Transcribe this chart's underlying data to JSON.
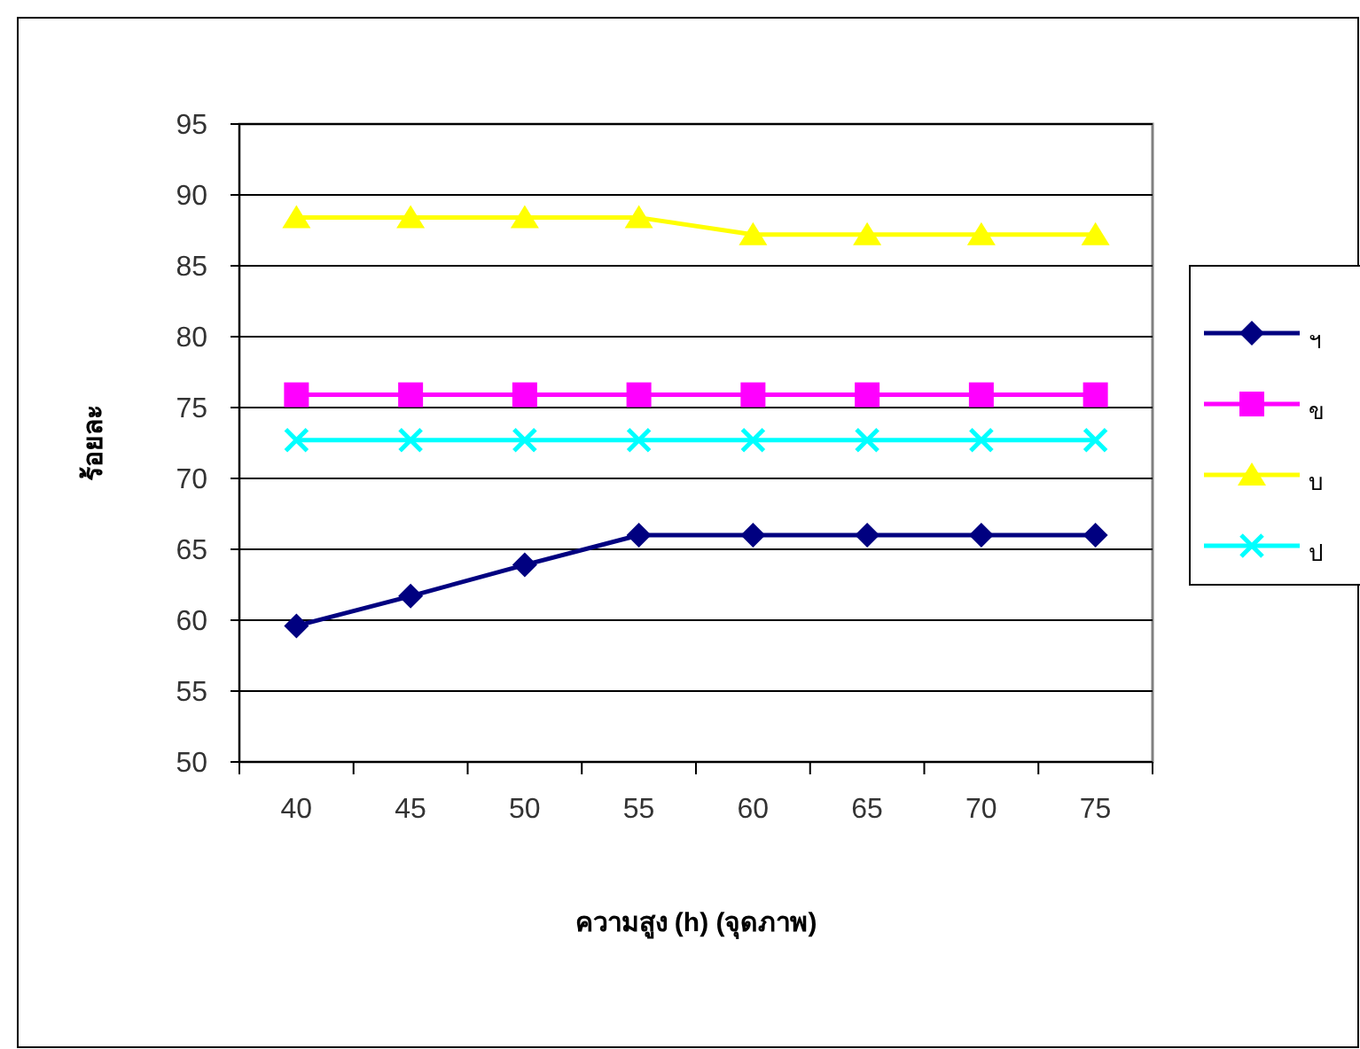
{
  "chart_data": {
    "type": "line",
    "xlabel": "ความสูง (h) (จุดภาพ)",
    "ylabel": "ร้อยละ",
    "categories": [
      "40",
      "45",
      "50",
      "55",
      "60",
      "65",
      "70",
      "75"
    ],
    "series": [
      {
        "name": "ฯ",
        "color": "#000080",
        "marker": "diamond",
        "values": [
          59.6,
          61.7,
          63.9,
          66.0,
          66.0,
          66.0,
          66.0,
          66.0
        ]
      },
      {
        "name": "ข",
        "color": "#ff00ff",
        "marker": "square",
        "values": [
          75.9,
          75.9,
          75.9,
          75.9,
          75.9,
          75.9,
          75.9,
          75.9
        ]
      },
      {
        "name": "บ",
        "color": "#ffff00",
        "marker": "triangle",
        "values": [
          88.4,
          88.4,
          88.4,
          88.4,
          87.2,
          87.2,
          87.2,
          87.2
        ]
      },
      {
        "name": "ป",
        "color": "#00ffff",
        "marker": "cross",
        "values": [
          72.7,
          72.7,
          72.7,
          72.7,
          72.7,
          72.7,
          72.7,
          72.7
        ]
      }
    ],
    "ylim": [
      50,
      95
    ],
    "yticks": [
      50,
      55,
      60,
      65,
      70,
      75,
      80,
      85,
      90,
      95
    ],
    "grid": "y",
    "legend": "right"
  }
}
